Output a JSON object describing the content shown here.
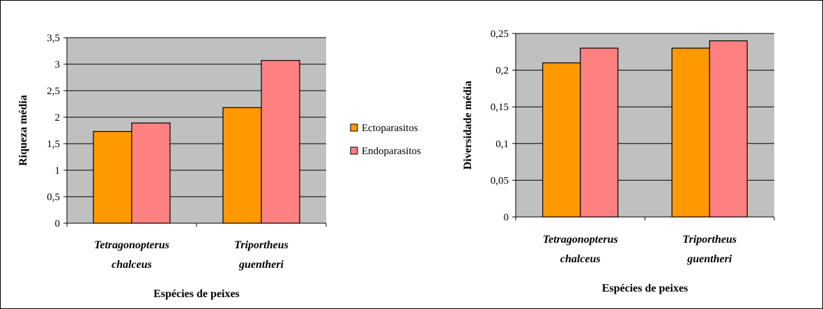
{
  "colors": {
    "plot_bg": "#c0c0c0",
    "ecto": "#ff9900",
    "endo": "#ff8080",
    "grid": "#000000"
  },
  "legend": {
    "items": [
      {
        "label": "Ectoparasitos",
        "color": "#ff9900"
      },
      {
        "label": "Endoparasitos",
        "color": "#ff8080"
      }
    ],
    "placement": "between-charts"
  },
  "chart_data": [
    {
      "type": "bar",
      "title": "",
      "xlabel": "Espécies de peixes",
      "ylabel": "Riqueza média",
      "categories": [
        [
          "Tetragonopterus",
          "chalceus"
        ],
        [
          "Triportheus",
          "guentheri"
        ]
      ],
      "series": [
        {
          "name": "Ectoparasitos",
          "values": [
            1.73,
            2.18
          ]
        },
        {
          "name": "Endoparasitos",
          "values": [
            1.89,
            3.07
          ]
        }
      ],
      "ylim": [
        0,
        3.5
      ],
      "yticks": [
        "0",
        "0,5",
        "1",
        "1,5",
        "2",
        "2,5",
        "3",
        "3,5"
      ],
      "ytick_values": [
        0,
        0.5,
        1,
        1.5,
        2,
        2.5,
        3,
        3.5
      ],
      "grid": true
    },
    {
      "type": "bar",
      "title": "",
      "xlabel": "Espécies de peixes",
      "ylabel": "Diversidade média",
      "categories": [
        [
          "Tetragonopterus",
          "chalceus"
        ],
        [
          "Triportheus",
          "guentheri"
        ]
      ],
      "series": [
        {
          "name": "Ectoparasitos",
          "values": [
            0.21,
            0.23
          ]
        },
        {
          "name": "Endoparasitos",
          "values": [
            0.23,
            0.24
          ]
        }
      ],
      "ylim": [
        0,
        0.25
      ],
      "yticks": [
        "0",
        "0,05",
        "0,1",
        "0,15",
        "0,2",
        "0,25"
      ],
      "ytick_values": [
        0,
        0.05,
        0.1,
        0.15,
        0.2,
        0.25
      ],
      "grid": true
    }
  ]
}
